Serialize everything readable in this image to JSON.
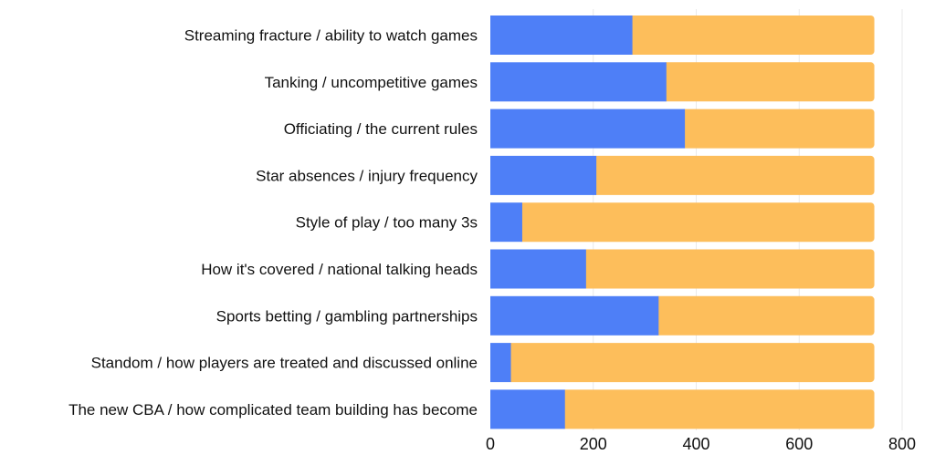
{
  "chart_data": {
    "type": "bar",
    "orientation": "horizontal",
    "stacked": true,
    "categories": [
      "Streaming fracture / ability to watch games",
      "Tanking / uncompetitive games",
      "Officiating / the current rules",
      "Star absences / injury frequency",
      "Style of play / too many 3s",
      "How it's covered / national talking heads",
      "Sports betting / gambling partnerships",
      "Standom / how players are treated and discussed online",
      "The new CBA / how complicated team building has become"
    ],
    "series": [
      {
        "values": [
          276,
          342,
          378,
          206,
          62,
          186,
          327,
          40,
          145
        ]
      },
      {
        "values": [
          470,
          404,
          368,
          540,
          684,
          560,
          419,
          706,
          601
        ]
      }
    ],
    "colors": [
      "#4e7ff7",
      "#fdbe5b"
    ],
    "xlim": [
      0,
      800
    ],
    "xticks": [
      "0",
      "200",
      "400",
      "600",
      "800"
    ],
    "grid": true,
    "title": "",
    "xlabel": "",
    "ylabel": ""
  }
}
